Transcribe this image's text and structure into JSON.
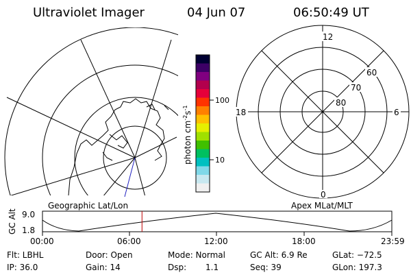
{
  "header": {
    "instrument": "Ultraviolet Imager",
    "date": "04 Jun 07",
    "time": "06:50:49 UT"
  },
  "colorbar": {
    "unit_label": "photon cm",
    "unit_exp1": "-2",
    "unit_s": "s",
    "unit_exp2": "-1",
    "tick_100": "100",
    "tick_10": "10",
    "colors": [
      "#000033",
      "#3d0066",
      "#800080",
      "#b3004d",
      "#e6003a",
      "#ff3300",
      "#ff8000",
      "#ffc000",
      "#e6f000",
      "#a0e000",
      "#40c000",
      "#00c060",
      "#00c0c0",
      "#80d8e8",
      "#c8e8f0",
      "#f0f0f0"
    ]
  },
  "polar": {
    "mlt_top": "12",
    "mlt_left": "18",
    "mlt_right": "6",
    "mlt_bottom": "0",
    "lat_60": "60",
    "lat_70": "70",
    "lat_80": "80"
  },
  "footer": {
    "geo_label": "Geographic Lat/Lon",
    "apex_label": "Apex MLat/MLT",
    "axis_name": "GC Alt",
    "alt_max": "9.0",
    "alt_min": "1.8",
    "times": [
      "00:00",
      "06:00",
      "12:00",
      "18:00",
      "23:59"
    ],
    "current_time_fraction": 0.285
  },
  "params": {
    "filter": "Flt: LBHL",
    "door": "Door: Open",
    "mode": "Mode: Normal",
    "gc_alt": "GC Alt: 6.9 Re",
    "glat": "GLat: −72.5",
    "ip": "IP: 36.0",
    "gain": "Gain: 14",
    "dsp_label": "Dsp:",
    "dsp_value": "1.1",
    "seq": "Seq: 39",
    "glon": "GLon: 197.3"
  }
}
